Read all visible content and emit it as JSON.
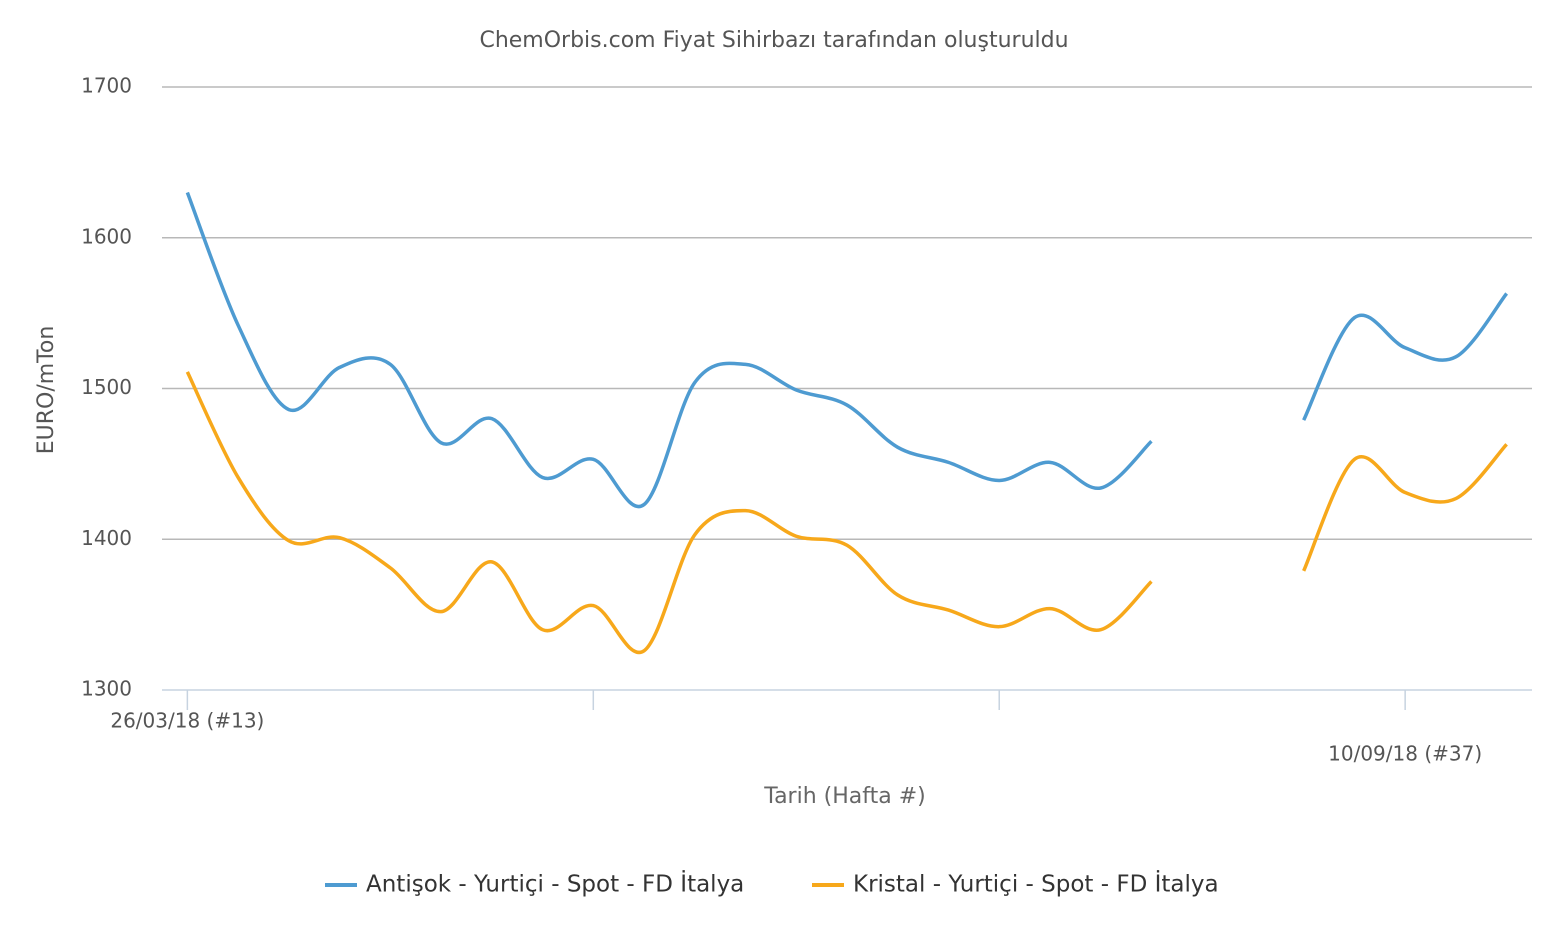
{
  "chart_data": {
    "type": "line",
    "title": "ChemOrbis.com Fiyat Sihirbazı tarafından oluşturuldu",
    "y_label": "EURO/mTon",
    "x_label": "Tarih (Hafta #)",
    "categories": [
      "26/03/18 (#13)",
      null,
      null,
      null,
      null,
      null,
      null,
      null,
      null,
      null,
      null,
      null,
      null,
      null,
      null,
      null,
      null,
      null,
      null,
      null,
      null,
      null,
      null,
      null,
      "10/09/18 (#37)",
      null,
      null
    ],
    "xtick_interval": 8,
    "series": [
      {
        "name": "Antişok - Yurtiçi - Spot - FD İtalya",
        "color": "#4e9bd1",
        "values": [
          1630,
          1542,
          1486,
          1514,
          1516,
          1464,
          1480,
          1441,
          1453,
          1423,
          1504,
          1516,
          1499,
          1489,
          1461,
          1451,
          1439,
          1451,
          1434,
          1465,
          null,
          null,
          1479,
          1547,
          1527,
          1521,
          1563
        ]
      },
      {
        "name": "Kristal - Yurtiçi - Spot - FD İtalya",
        "color": "#f7a81b",
        "values": [
          1511,
          1441,
          1399,
          1401,
          1381,
          1352,
          1385,
          1340,
          1356,
          1326,
          1403,
          1419,
          1402,
          1396,
          1363,
          1353,
          1342,
          1354,
          1340,
          1372,
          null,
          null,
          1379,
          1453,
          1431,
          1427,
          1463
        ]
      }
    ],
    "ylim": [
      1300,
      1700
    ],
    "yticks": [
      1300,
      1400,
      1500,
      1600,
      1700
    ],
    "grid": true,
    "smooth": true,
    "legend": "bottom"
  }
}
